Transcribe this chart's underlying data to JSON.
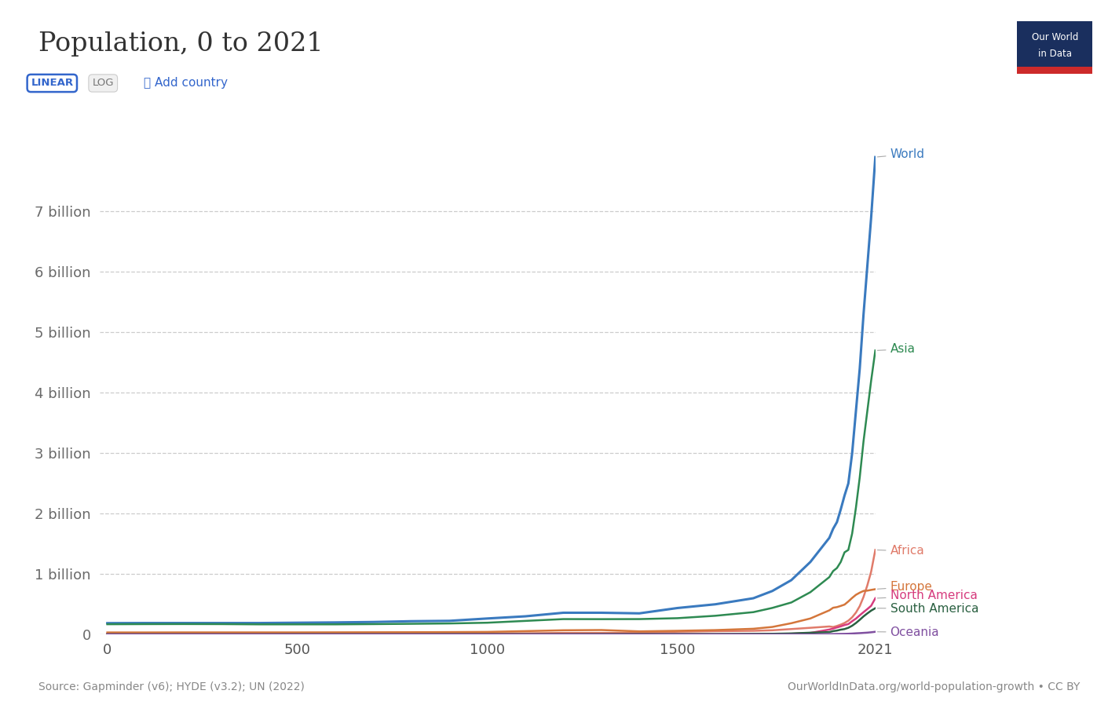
{
  "title": "Population, 0 to 2021",
  "source_text": "Source: Gapminder (v6); HYDE (v3.2); UN (2022)",
  "watermark": "OurWorldInData.org/world-population-growth • CC BY",
  "background_color": "#ffffff",
  "series_names": [
    "World",
    "Asia",
    "Africa",
    "Europe",
    "North America",
    "South America",
    "Oceania"
  ],
  "series_colors": [
    "#3a7abf",
    "#2e8a52",
    "#e07b6a",
    "#d4763b",
    "#d63c7e",
    "#2a6041",
    "#8050a0"
  ],
  "xlim": [
    -20,
    2021
  ],
  "ylim": [
    0,
    8400000000
  ],
  "yticks": [
    0,
    1000000000,
    2000000000,
    3000000000,
    4000000000,
    5000000000,
    6000000000,
    7000000000
  ],
  "ytick_labels": [
    "0",
    "1 billion",
    "2 billion",
    "3 billion",
    "4 billion",
    "5 billion",
    "6 billion",
    "7 billion"
  ],
  "xticks": [
    0,
    500,
    1000,
    1500,
    2021
  ],
  "xtick_labels": [
    "0",
    "500",
    "1000",
    "1500",
    "2021"
  ],
  "label_positions_y": [
    7950000000,
    4720000000,
    1380000000,
    790000000,
    645000000,
    430000000,
    38000000
  ]
}
